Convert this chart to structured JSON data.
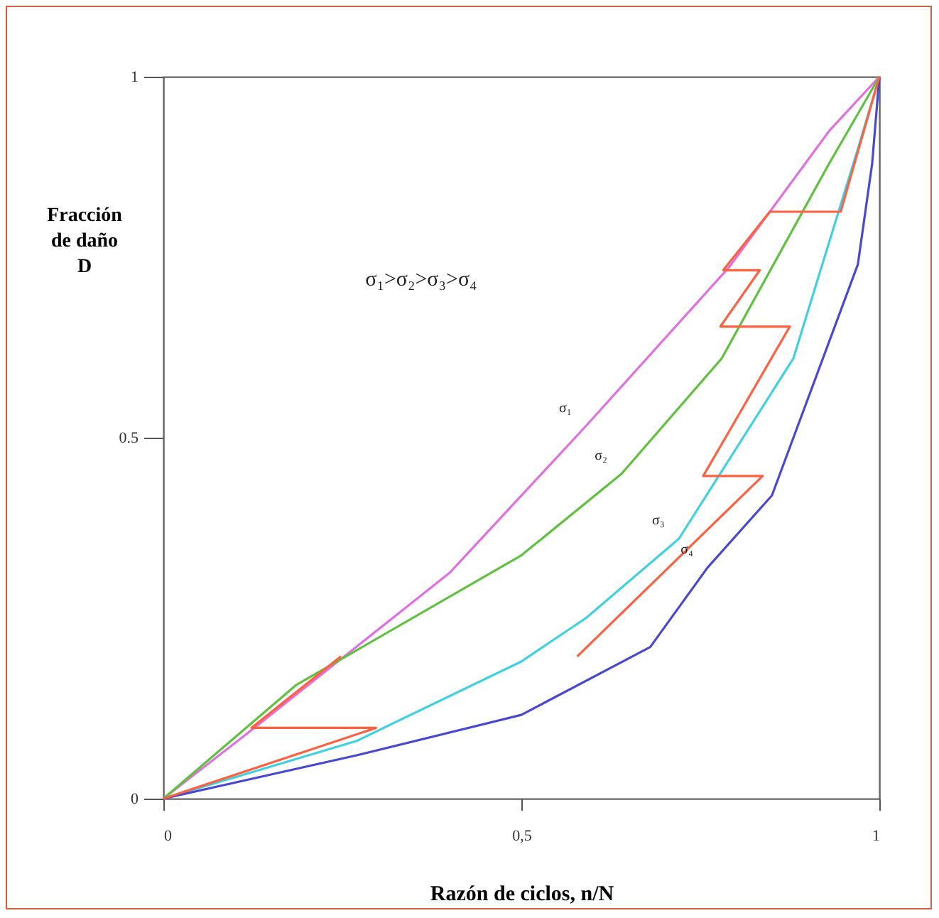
{
  "chart_data": {
    "type": "line",
    "xlabel": "Razón de ciclos, n/N",
    "ylabel": "Fracción de daño D",
    "xlim": [
      0,
      1
    ],
    "ylim": [
      0,
      1
    ],
    "xticks": [
      0,
      {
        "value": 0.5,
        "label": "0,5"
      },
      1
    ],
    "yticks": [
      0,
      0.5,
      1
    ],
    "grid": false,
    "legend": false,
    "series": [
      {
        "color": "#e070e0",
        "x": [
          0,
          0.127,
          0.4,
          0.59,
          0.79,
          0.93,
          1
        ],
        "values": [
          0,
          0.098,
          0.313,
          0.516,
          0.736,
          0.925,
          1
        ]
      },
      {
        "color": "#60c040",
        "x": [
          0,
          0.185,
          0.5,
          0.64,
          0.78,
          0.93,
          1
        ],
        "values": [
          0,
          0.157,
          0.337,
          0.45,
          0.61,
          0.88,
          1
        ]
      },
      {
        "color": "#40d0e0",
        "x": [
          0,
          0.27,
          0.5,
          0.59,
          0.72,
          0.88,
          0.97,
          1
        ],
        "values": [
          0,
          0.08,
          0.19,
          0.25,
          0.36,
          0.61,
          0.9,
          1
        ]
      },
      {
        "color": "#4848d0",
        "x": [
          0,
          0.27,
          0.5,
          0.68,
          0.76,
          0.85,
          0.97,
          0.99,
          1
        ],
        "values": [
          0,
          0.06,
          0.116,
          0.21,
          0.32,
          0.42,
          0.74,
          0.88,
          1
        ]
      },
      {
        "color": "#ff6040",
        "x": [
          0,
          0.297,
          0.123,
          0.248
        ],
        "values": [
          0,
          0.098,
          0.098,
          0.197
        ]
      },
      {
        "color": "#ff6040",
        "x": [
          0.578,
          0.837,
          0.754,
          0.875,
          0.778,
          0.833,
          0.782,
          0.847,
          0.946,
          1
        ],
        "values": [
          0.197,
          0.447,
          0.447,
          0.654,
          0.654,
          0.732,
          0.732,
          0.813,
          0.813,
          1
        ]
      }
    ],
    "annotations": [
      "σ₁>σ₂>σ₃>σ₄",
      {
        "text": "σ₁",
        "x": 0.59,
        "y": 0.516
      },
      {
        "text": "σ₂",
        "x": 0.64,
        "y": 0.45
      },
      {
        "text": "σ₃",
        "x": 0.72,
        "y": 0.36
      },
      {
        "text": "σ₄",
        "x": 0.76,
        "y": 0.32
      }
    ]
  }
}
